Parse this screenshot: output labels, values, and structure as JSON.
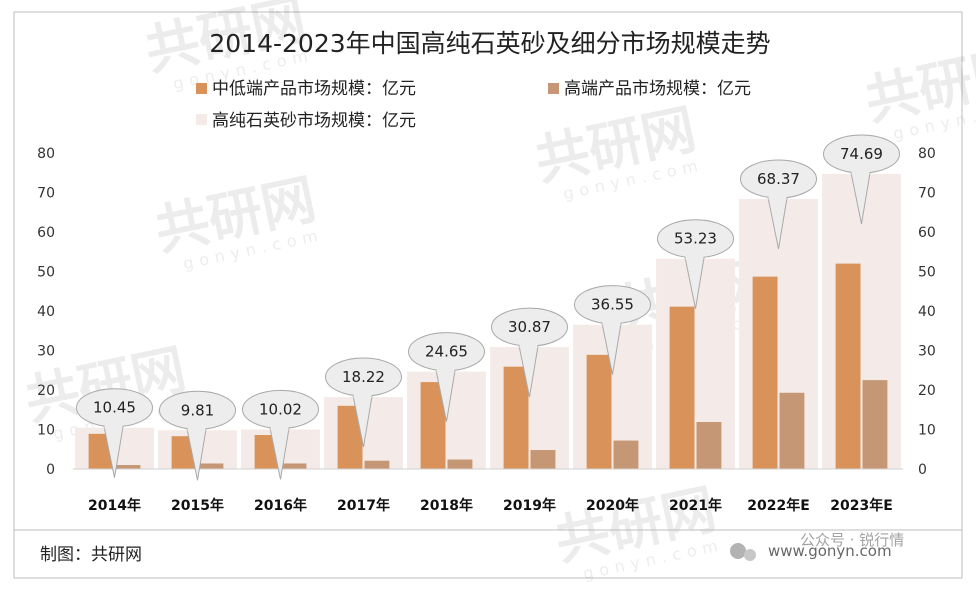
{
  "chart_data": {
    "type": "bar",
    "title": "2014-2023年中国高纯石英砂及细分市场规模走势",
    "categories": [
      "2014年",
      "2015年",
      "2016年",
      "2017年",
      "2018年",
      "2019年",
      "2020年",
      "2021年",
      "2022年E",
      "2023年E"
    ],
    "series": [
      {
        "name": "中低端产品市场规模：亿元",
        "color": "#d9935a",
        "values": [
          8.9,
          8.3,
          8.6,
          16.0,
          22.0,
          25.9,
          28.9,
          41.1,
          48.7,
          52.0
        ]
      },
      {
        "name": "高端产品市场规模：亿元",
        "color": "#c69774",
        "values": [
          1.0,
          1.4,
          1.4,
          2.1,
          2.4,
          4.8,
          7.2,
          11.9,
          19.3,
          22.5
        ]
      },
      {
        "name": "高纯石英砂市场规模：亿元",
        "color": "#f4ebe8",
        "values": [
          10.45,
          9.81,
          10.02,
          18.22,
          24.65,
          30.87,
          36.55,
          53.23,
          68.37,
          74.69
        ]
      }
    ],
    "data_labels": [
      "10.45",
      "9.81",
      "10.02",
      "18.22",
      "24.65",
      "30.87",
      "36.55",
      "53.23",
      "68.37",
      "74.69"
    ],
    "yticks": [
      "0",
      "10",
      "20",
      "30",
      "40",
      "50",
      "60",
      "70",
      "80"
    ],
    "ylim": [
      0,
      80
    ],
    "legend_placement": "top-left",
    "grid": false
  },
  "source": "制图：共研网",
  "watermark": {
    "brand": "共研网",
    "url": "gonyn.com",
    "footer_text": "公众号 · 锐行情",
    "footer_url": "www.gonyn.com"
  }
}
